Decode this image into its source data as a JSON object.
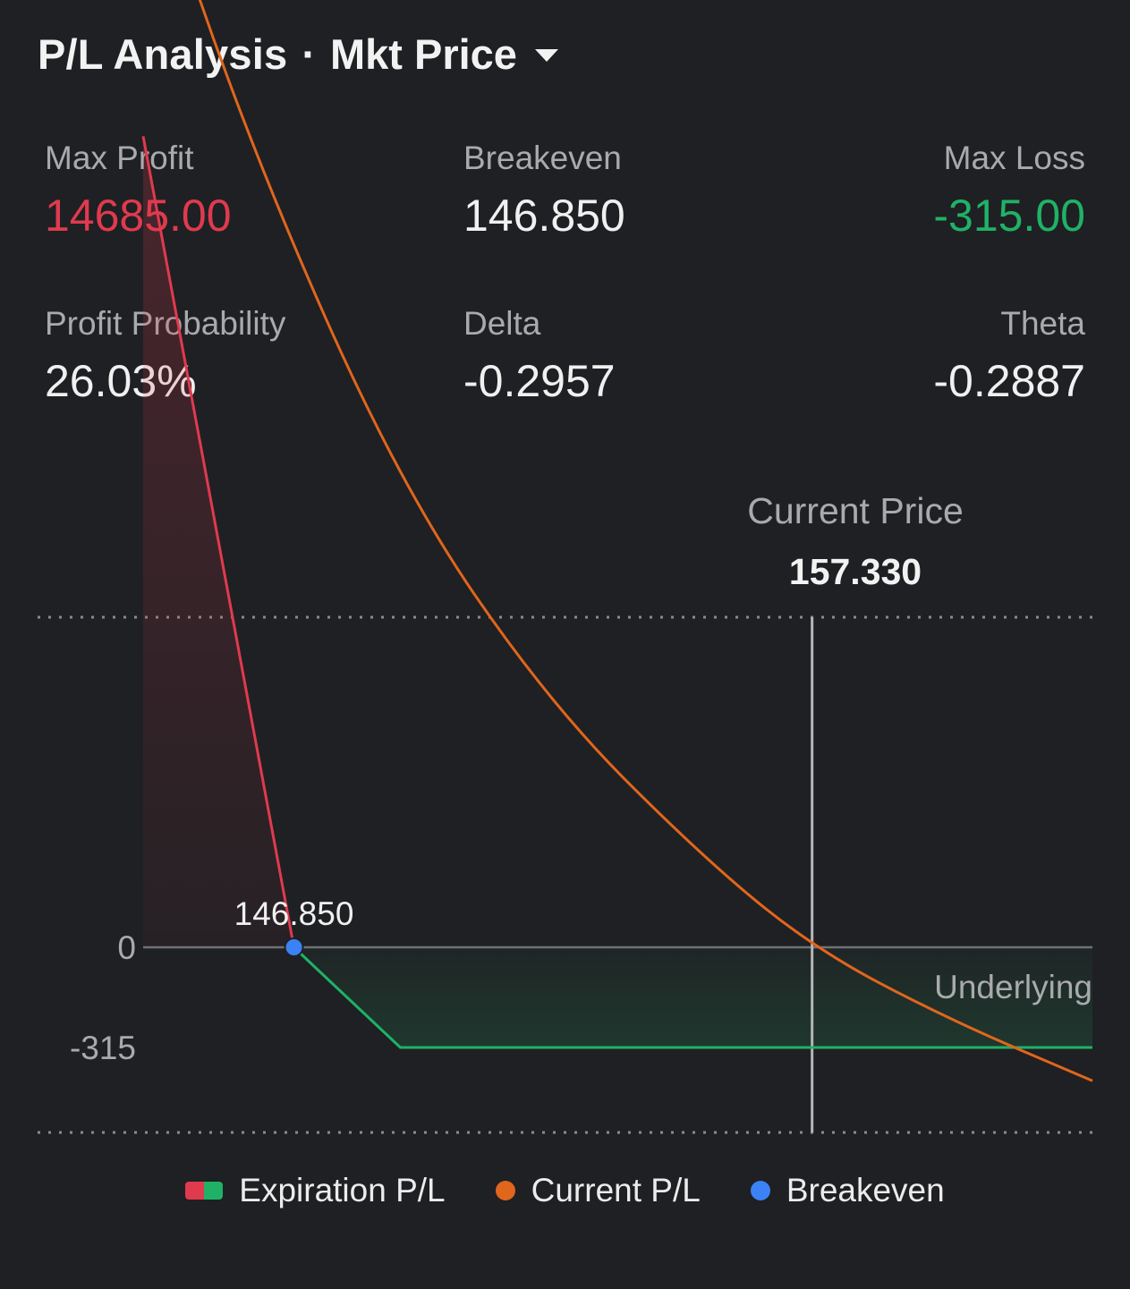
{
  "header": {
    "title": "P/L Analysis",
    "separator": "·",
    "mode": "Mkt Price"
  },
  "stats": {
    "max_profit": {
      "label": "Max Profit",
      "value": "14685.00"
    },
    "breakeven": {
      "label": "Breakeven",
      "value": "146.850"
    },
    "max_loss": {
      "label": "Max Loss",
      "value": "-315.00"
    },
    "profit_probability": {
      "label": "Profit Probability",
      "value": "26.03%"
    },
    "delta": {
      "label": "Delta",
      "value": "-0.2957"
    },
    "theta": {
      "label": "Theta",
      "value": "-0.2887"
    }
  },
  "current_price": {
    "label": "Current Price",
    "value": "157.330"
  },
  "colors": {
    "background": "#1f2023",
    "profit_red": "#e03a4e",
    "loss_green": "#1fb266",
    "current_orange": "#e0661c",
    "breakeven_blue": "#3b82f6",
    "label_gray": "#a9aaad"
  },
  "chart_data": {
    "type": "line",
    "xlabel": "Underlying",
    "ylabel": "",
    "y_tick_labels": [
      "0",
      "-315"
    ],
    "breakeven_label": "146.850",
    "breakeven_x": 146.85,
    "current_price_x": 157.33,
    "series": [
      {
        "name": "Expiration P/L",
        "points": [
          [
            143.8,
            2550
          ],
          [
            146.85,
            0
          ],
          [
            149.0,
            -315
          ],
          [
            163.0,
            -315
          ]
        ]
      },
      {
        "name": "Current P/L",
        "points": [
          [
            143.8,
            3500
          ],
          [
            146.0,
            2500
          ],
          [
            149.0,
            1450
          ],
          [
            152.0,
            770
          ],
          [
            155.0,
            300
          ],
          [
            157.33,
            0
          ],
          [
            160.0,
            -220
          ],
          [
            163.0,
            -420
          ]
        ]
      }
    ],
    "legend": [
      "Expiration P/L",
      "Current P/L",
      "Breakeven"
    ],
    "legend_placement": "bottom"
  }
}
